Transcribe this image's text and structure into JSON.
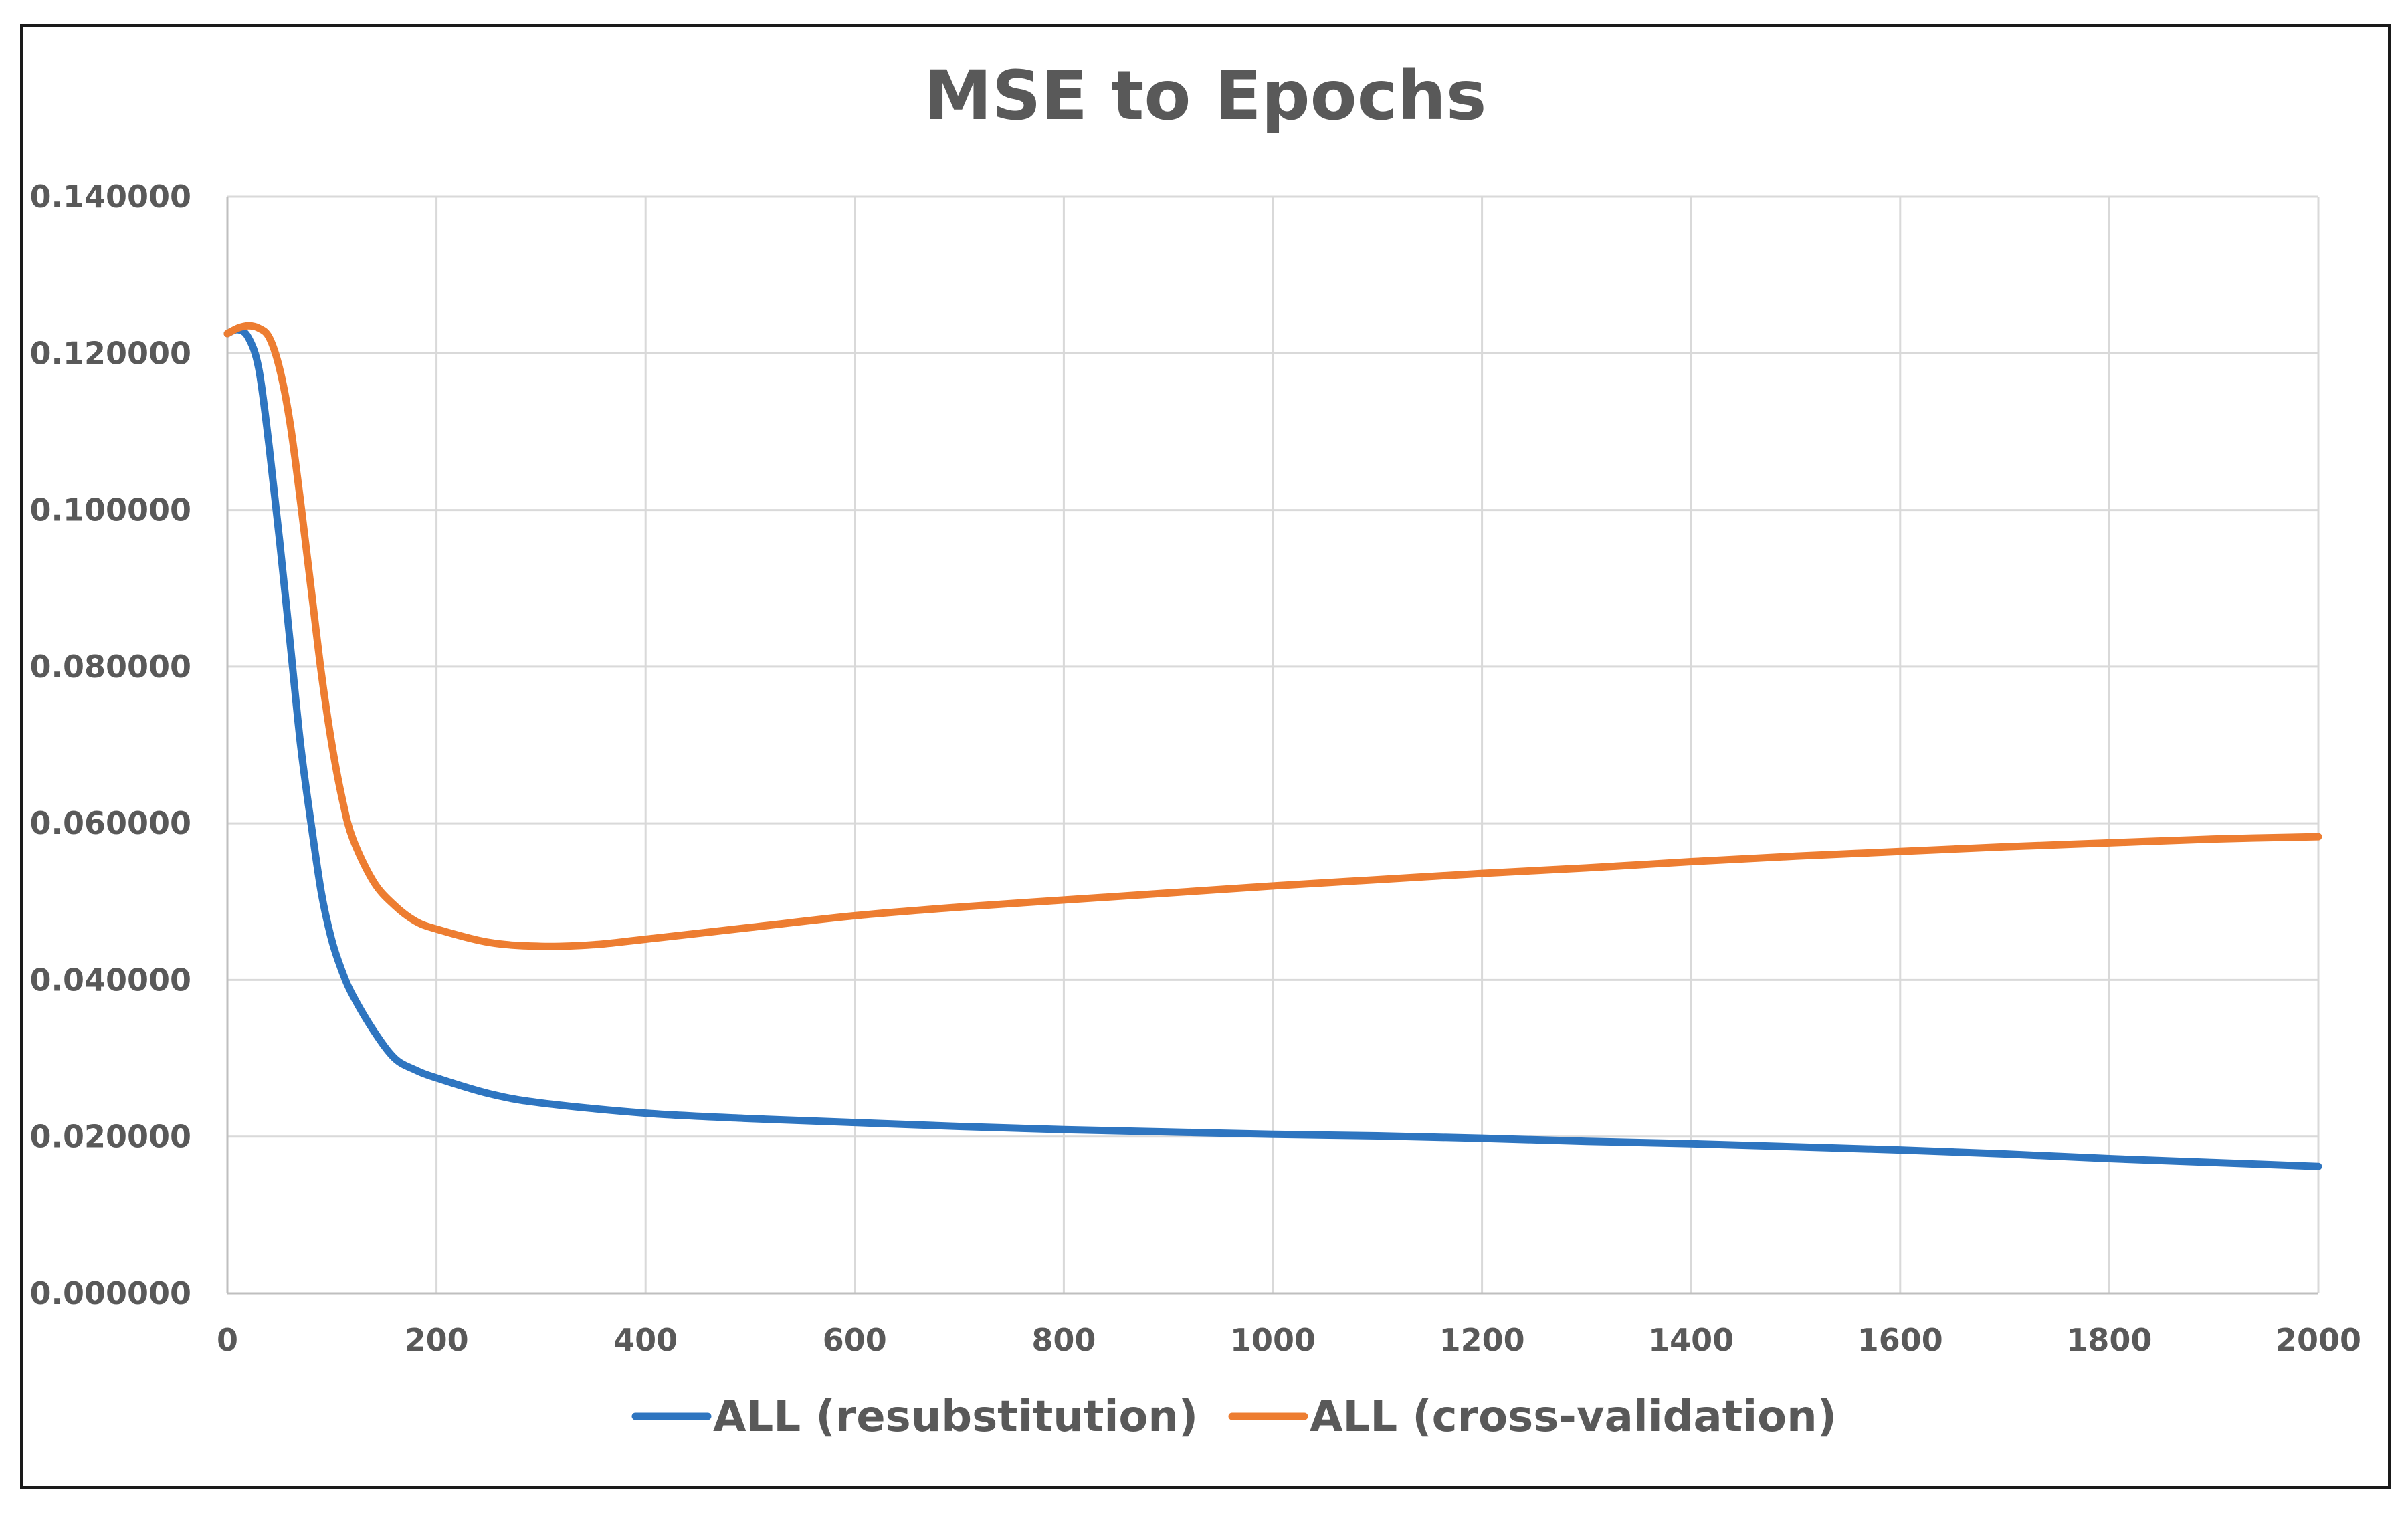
{
  "chart_data": {
    "type": "line",
    "title": "MSE to Epochs",
    "xlabel": "",
    "ylabel": "",
    "xlim": [
      0,
      2000
    ],
    "ylim": [
      0,
      0.14
    ],
    "grid": true,
    "legend_position": "bottom",
    "x_ticks": [
      "0",
      "200",
      "400",
      "600",
      "800",
      "1000",
      "1200",
      "1400",
      "1600",
      "1800",
      "2000"
    ],
    "y_ticks": [
      "0.000000",
      "0.020000",
      "0.040000",
      "0.060000",
      "0.080000",
      "0.100000",
      "0.120000",
      "0.140000"
    ],
    "x_tick_values": [
      0,
      200,
      400,
      600,
      800,
      1000,
      1200,
      1400,
      1600,
      1800,
      2000
    ],
    "y_tick_values": [
      0,
      0.02,
      0.04,
      0.06,
      0.08,
      0.1,
      0.12,
      0.14
    ],
    "series": [
      {
        "name": "ALL (resubstitution)",
        "color": "#2e75c0",
        "x": [
          0,
          10,
          20,
          30,
          40,
          50,
          60,
          70,
          80,
          90,
          100,
          110,
          120,
          140,
          160,
          180,
          200,
          250,
          300,
          400,
          500,
          600,
          700,
          800,
          900,
          1000,
          1100,
          1200,
          1300,
          1400,
          1500,
          1600,
          1700,
          1800,
          1900,
          2000
        ],
        "y": [
          0.1225,
          0.123,
          0.122,
          0.118,
          0.108,
          0.096,
          0.083,
          0.07,
          0.06,
          0.051,
          0.045,
          0.041,
          0.038,
          0.0335,
          0.03,
          0.0285,
          0.0275,
          0.0255,
          0.0243,
          0.023,
          0.0223,
          0.0218,
          0.0213,
          0.0209,
          0.0206,
          0.0203,
          0.0201,
          0.0198,
          0.0194,
          0.0191,
          0.0187,
          0.0183,
          0.0178,
          0.0172,
          0.0167,
          0.0162
        ]
      },
      {
        "name": "ALL (cross-validation)",
        "color": "#ed7d31",
        "x": [
          0,
          10,
          20,
          30,
          40,
          50,
          60,
          70,
          80,
          90,
          100,
          110,
          120,
          140,
          160,
          180,
          200,
          250,
          300,
          350,
          400,
          500,
          600,
          700,
          800,
          900,
          1000,
          1100,
          1200,
          1300,
          1400,
          1500,
          1600,
          1700,
          1800,
          1900,
          2000
        ],
        "y": [
          0.1225,
          0.1232,
          0.1235,
          0.1232,
          0.122,
          0.118,
          0.111,
          0.101,
          0.09,
          0.079,
          0.07,
          0.063,
          0.058,
          0.0525,
          0.0495,
          0.0475,
          0.0465,
          0.0448,
          0.0443,
          0.0445,
          0.0452,
          0.0467,
          0.0482,
          0.0493,
          0.0502,
          0.0511,
          0.052,
          0.0528,
          0.0536,
          0.0543,
          0.0551,
          0.0558,
          0.0564,
          0.057,
          0.0575,
          0.058,
          0.0583
        ]
      }
    ]
  }
}
